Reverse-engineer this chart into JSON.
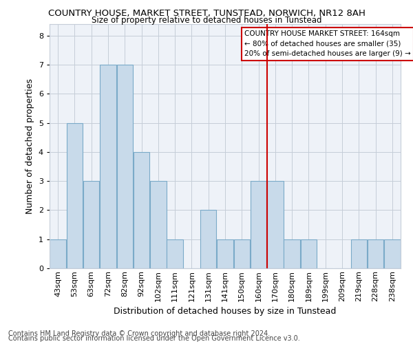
{
  "title": "COUNTRY HOUSE, MARKET STREET, TUNSTEAD, NORWICH, NR12 8AH",
  "subtitle": "Size of property relative to detached houses in Tunstead",
  "xlabel": "Distribution of detached houses by size in Tunstead",
  "ylabel": "Number of detached properties",
  "footer1": "Contains HM Land Registry data © Crown copyright and database right 2024.",
  "footer2": "Contains public sector information licensed under the Open Government Licence v3.0.",
  "bins": [
    "43sqm",
    "53sqm",
    "63sqm",
    "72sqm",
    "82sqm",
    "92sqm",
    "102sqm",
    "111sqm",
    "121sqm",
    "131sqm",
    "141sqm",
    "150sqm",
    "160sqm",
    "170sqm",
    "180sqm",
    "189sqm",
    "199sqm",
    "209sqm",
    "219sqm",
    "228sqm",
    "238sqm"
  ],
  "values": [
    1,
    5,
    3,
    7,
    7,
    4,
    3,
    1,
    0,
    2,
    1,
    1,
    3,
    3,
    1,
    1,
    0,
    0,
    1,
    1,
    1
  ],
  "bar_color": "#c8daea",
  "bar_edge_color": "#7aaac8",
  "vline_bin_index": 12,
  "vline_color": "#cc0000",
  "legend_title": "COUNTRY HOUSE MARKET STREET: 164sqm",
  "legend_line1": "← 80% of detached houses are smaller (35)",
  "legend_line2": "20% of semi-detached houses are larger (9) →",
  "ylim": [
    0,
    8.4
  ],
  "yticks": [
    0,
    1,
    2,
    3,
    4,
    5,
    6,
    7,
    8
  ],
  "background_color": "#eef2f8",
  "grid_color": "#c5cdd8",
  "title_fontsize": 9.5,
  "subtitle_fontsize": 8.5,
  "axis_label_fontsize": 9,
  "tick_fontsize": 8,
  "legend_fontsize": 7.5,
  "footer_fontsize": 7
}
